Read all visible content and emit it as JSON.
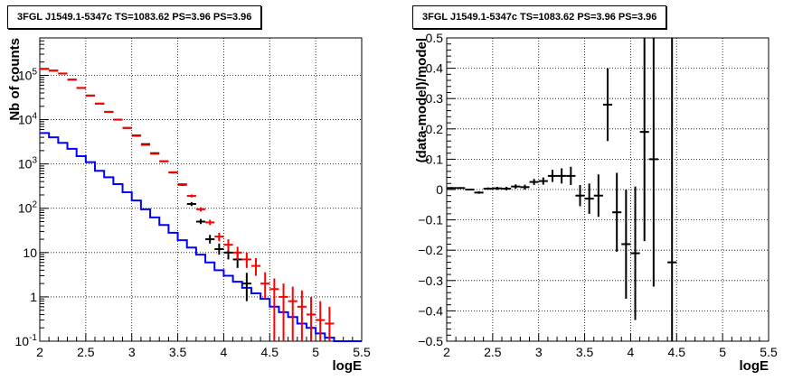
{
  "chart_data": [
    {
      "type": "histogram",
      "title": "3FGL J1549.1-5347c TS=1083.62 PS=3.96 PS=3.96",
      "xlabel": "logE",
      "ylabel": "Nb of counts",
      "xlim": [
        2,
        5.5
      ],
      "ylim": [
        0.1,
        700000
      ],
      "yscale": "log",
      "grid": true,
      "xticks": [
        "2",
        "2.5",
        "3",
        "3.5",
        "4",
        "4.5",
        "5",
        "5.5"
      ],
      "yticks": [
        {
          "value": 0.1,
          "label": "10^-1"
        },
        {
          "value": 1,
          "label": "1"
        },
        {
          "value": 10,
          "label": "10"
        },
        {
          "value": 100,
          "label": "10^2"
        },
        {
          "value": 1000,
          "label": "10^3"
        },
        {
          "value": 10000,
          "label": "10^4"
        },
        {
          "value": 100000,
          "label": "10^5"
        }
      ],
      "bin_edges": [
        2.0,
        2.1,
        2.2,
        2.3,
        2.4,
        2.5,
        2.6,
        2.7,
        2.8,
        2.9,
        3.0,
        3.1,
        3.2,
        3.3,
        3.4,
        3.5,
        3.6,
        3.7,
        3.8,
        3.9,
        4.0,
        4.1,
        4.2,
        4.3,
        4.4,
        4.5,
        4.6,
        4.7,
        4.8,
        4.9,
        5.0,
        5.1,
        5.2,
        5.3,
        5.4,
        5.5
      ],
      "series": [
        {
          "color": "#0000ff",
          "style": "step",
          "values": [
            5000,
            4000,
            3000,
            2200,
            1500,
            1100,
            700,
            500,
            350,
            230,
            150,
            95,
            62,
            42,
            28,
            19,
            13,
            9,
            6,
            4,
            3,
            2.2,
            1.6,
            1.2,
            0.9,
            0.6,
            0.45,
            0.35,
            0.25,
            0.2,
            0.15,
            0.12,
            0.1,
            0.1,
            0.1
          ]
        },
        {
          "color": "#ff0000",
          "style": "errorbar",
          "points": [
            {
              "x": 2.05,
              "y": 140000,
              "lo": 139000,
              "hi": 141000
            },
            {
              "x": 2.15,
              "y": 128000,
              "lo": 127000,
              "hi": 129000
            },
            {
              "x": 2.25,
              "y": 110000,
              "lo": 109000,
              "hi": 111000
            },
            {
              "x": 2.35,
              "y": 80000,
              "lo": 79000,
              "hi": 81000
            },
            {
              "x": 2.45,
              "y": 52000,
              "lo": 51000,
              "hi": 53000
            },
            {
              "x": 2.55,
              "y": 35000,
              "lo": 34500,
              "hi": 35500
            },
            {
              "x": 2.65,
              "y": 23000,
              "lo": 22600,
              "hi": 23400
            },
            {
              "x": 2.75,
              "y": 15000,
              "lo": 14700,
              "hi": 15300
            },
            {
              "x": 2.85,
              "y": 10000,
              "lo": 9800,
              "hi": 10200
            },
            {
              "x": 2.95,
              "y": 6500,
              "lo": 6350,
              "hi": 6650
            },
            {
              "x": 3.05,
              "y": 4300,
              "lo": 4150,
              "hi": 4450
            },
            {
              "x": 3.15,
              "y": 2700,
              "lo": 2600,
              "hi": 2800
            },
            {
              "x": 3.25,
              "y": 1700,
              "lo": 1630,
              "hi": 1770
            },
            {
              "x": 3.35,
              "y": 1150,
              "lo": 1100,
              "hi": 1200
            },
            {
              "x": 3.45,
              "y": 650,
              "lo": 620,
              "hi": 680
            },
            {
              "x": 3.55,
              "y": 350,
              "lo": 330,
              "hi": 370
            },
            {
              "x": 3.65,
              "y": 190,
              "lo": 175,
              "hi": 205
            },
            {
              "x": 3.75,
              "y": 95,
              "lo": 85,
              "hi": 105
            },
            {
              "x": 3.85,
              "y": 48,
              "lo": 42,
              "hi": 55
            },
            {
              "x": 3.95,
              "y": 23,
              "lo": 18,
              "hi": 28
            },
            {
              "x": 4.05,
              "y": 15,
              "lo": 11,
              "hi": 20
            },
            {
              "x": 4.15,
              "y": 10,
              "lo": 6.8,
              "hi": 13.5
            },
            {
              "x": 4.25,
              "y": 7,
              "lo": 4.5,
              "hi": 10
            },
            {
              "x": 4.35,
              "y": 5,
              "lo": 3,
              "hi": 7.5
            },
            {
              "x": 4.45,
              "y": 2,
              "lo": 0.9,
              "hi": 3.6
            },
            {
              "x": 4.55,
              "y": 1.5,
              "lo": 0.1,
              "hi": 2.6
            },
            {
              "x": 4.65,
              "y": 1,
              "lo": 0.1,
              "hi": 2
            },
            {
              "x": 4.75,
              "y": 0.8,
              "lo": 0.1,
              "hi": 1.7
            },
            {
              "x": 4.85,
              "y": 0.6,
              "lo": 0.1,
              "hi": 1.4
            },
            {
              "x": 4.95,
              "y": 0.4,
              "lo": 0.1,
              "hi": 1.0
            },
            {
              "x": 5.05,
              "y": 0.3,
              "lo": 0.1,
              "hi": 0.8
            },
            {
              "x": 5.15,
              "y": 0.25,
              "lo": 0.1,
              "hi": 0.6
            }
          ]
        },
        {
          "color": "#000000",
          "style": "errorbar",
          "points": [
            {
              "x": 2.05,
              "y": 140000,
              "lo": 139000,
              "hi": 141000
            },
            {
              "x": 2.15,
              "y": 128000,
              "lo": 127000,
              "hi": 129000
            },
            {
              "x": 2.25,
              "y": 110000,
              "lo": 109000,
              "hi": 111000
            },
            {
              "x": 2.35,
              "y": 80000,
              "lo": 79000,
              "hi": 81000
            },
            {
              "x": 2.45,
              "y": 52000,
              "lo": 51000,
              "hi": 53000
            },
            {
              "x": 2.55,
              "y": 35000,
              "lo": 34500,
              "hi": 35500
            },
            {
              "x": 2.65,
              "y": 23000,
              "lo": 22600,
              "hi": 23400
            },
            {
              "x": 2.75,
              "y": 15000,
              "lo": 14700,
              "hi": 15300
            },
            {
              "x": 2.85,
              "y": 10000,
              "lo": 9800,
              "hi": 10200
            },
            {
              "x": 2.95,
              "y": 6500,
              "lo": 6350,
              "hi": 6650
            },
            {
              "x": 3.05,
              "y": 4400,
              "lo": 4250,
              "hi": 4550
            },
            {
              "x": 3.15,
              "y": 2800,
              "lo": 2700,
              "hi": 2900
            },
            {
              "x": 3.25,
              "y": 1750,
              "lo": 1680,
              "hi": 1820
            },
            {
              "x": 3.35,
              "y": 1150,
              "lo": 1100,
              "hi": 1200
            },
            {
              "x": 3.45,
              "y": 640,
              "lo": 610,
              "hi": 670
            },
            {
              "x": 3.55,
              "y": 340,
              "lo": 320,
              "hi": 360
            },
            {
              "x": 3.65,
              "y": 125,
              "lo": 112,
              "hi": 138
            },
            {
              "x": 3.75,
              "y": 50,
              "lo": 44,
              "hi": 57
            },
            {
              "x": 3.85,
              "y": 20,
              "lo": 16,
              "hi": 25
            },
            {
              "x": 3.95,
              "y": 12,
              "lo": 9,
              "hi": 16
            },
            {
              "x": 4.05,
              "y": 10,
              "lo": 7,
              "hi": 14
            },
            {
              "x": 4.15,
              "y": 7,
              "lo": 4.5,
              "hi": 10
            },
            {
              "x": 4.25,
              "y": 2,
              "lo": 0.8,
              "hi": 3.5
            }
          ]
        }
      ]
    },
    {
      "type": "scatter",
      "title": "3FGL J1549.1-5347c TS=1083.62 PS=3.96 PS=3.96",
      "xlabel": "logE",
      "ylabel": "(data-model)/model",
      "xlim": [
        2,
        5.5
      ],
      "ylim": [
        -0.5,
        0.5
      ],
      "grid": true,
      "xticks": [
        "2",
        "2.5",
        "3",
        "3.5",
        "4",
        "4.5",
        "5",
        "5.5"
      ],
      "yticks": [
        "−0.5",
        "−0.4",
        "−0.3",
        "−0.2",
        "−0.1",
        "0",
        "0.1",
        "0.2",
        "0.3",
        "0.4",
        "0.5"
      ],
      "series": [
        {
          "color": "#000000",
          "style": "errorbar",
          "points": [
            {
              "x": 2.05,
              "y": 0.005,
              "err": 0.003
            },
            {
              "x": 2.15,
              "y": 0.005,
              "err": 0.003
            },
            {
              "x": 2.25,
              "y": 0.0,
              "err": 0.003
            },
            {
              "x": 2.35,
              "y": -0.01,
              "err": 0.004
            },
            {
              "x": 2.45,
              "y": 0.003,
              "err": 0.004
            },
            {
              "x": 2.55,
              "y": 0.004,
              "err": 0.005
            },
            {
              "x": 2.65,
              "y": 0.003,
              "err": 0.006
            },
            {
              "x": 2.75,
              "y": 0.01,
              "err": 0.007
            },
            {
              "x": 2.85,
              "y": 0.008,
              "err": 0.008
            },
            {
              "x": 2.95,
              "y": 0.025,
              "err": 0.01
            },
            {
              "x": 3.05,
              "y": 0.028,
              "err": 0.012
            },
            {
              "x": 3.15,
              "y": 0.045,
              "err": 0.02
            },
            {
              "x": 3.25,
              "y": 0.045,
              "err": 0.025
            },
            {
              "x": 3.35,
              "y": 0.045,
              "err": 0.03
            },
            {
              "x": 3.45,
              "y": -0.02,
              "err": 0.035
            },
            {
              "x": 3.55,
              "y": -0.03,
              "err": 0.05
            },
            {
              "x": 3.65,
              "y": -0.02,
              "err": 0.07
            },
            {
              "x": 3.75,
              "y": 0.28,
              "err": 0.12
            },
            {
              "x": 3.85,
              "y": -0.075,
              "err": 0.13
            },
            {
              "x": 3.95,
              "y": -0.18,
              "err": 0.18
            },
            {
              "x": 4.05,
              "y": -0.21,
              "err": 0.22
            },
            {
              "x": 4.15,
              "y": 0.19,
              "err": 0.36
            },
            {
              "x": 4.25,
              "y": 0.1,
              "err": 0.42
            },
            {
              "x": 4.45,
              "y": -0.24,
              "err": 0.8
            }
          ]
        }
      ]
    }
  ]
}
